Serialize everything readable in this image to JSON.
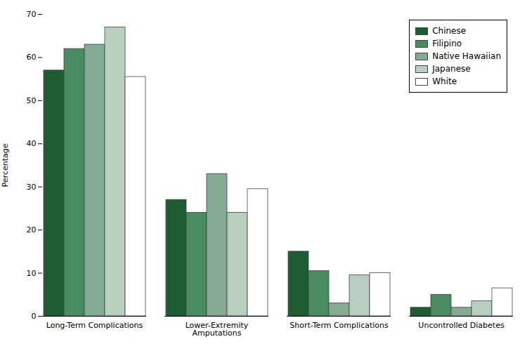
{
  "chart_data": {
    "type": "bar",
    "ylabel": "Percentage",
    "categories": [
      "Long-Term Complications",
      "Lower-Extremity\nAmputations",
      "Short-Term Complications",
      "Uncontrolled Diabetes"
    ],
    "series": [
      {
        "name": "Chinese",
        "color": "#1e5c32",
        "values": [
          57,
          27,
          15,
          2
        ]
      },
      {
        "name": "Filipino",
        "color": "#4a8c60",
        "values": [
          62,
          24,
          10.5,
          5
        ]
      },
      {
        "name": "Native Hawaiian",
        "color": "#85ab93",
        "values": [
          63,
          33,
          3,
          2
        ]
      },
      {
        "name": "Japanese",
        "color": "#b8cfc0",
        "values": [
          67,
          24,
          9.5,
          3.5
        ]
      },
      {
        "name": "White",
        "color": "#ffffff",
        "values": [
          55.5,
          29.5,
          10,
          6.5
        ]
      }
    ],
    "ylim": [
      0,
      70
    ],
    "yticks": [
      0,
      10,
      20,
      30,
      40,
      50,
      60,
      70
    ],
    "grid": false,
    "legend": "upper right"
  }
}
